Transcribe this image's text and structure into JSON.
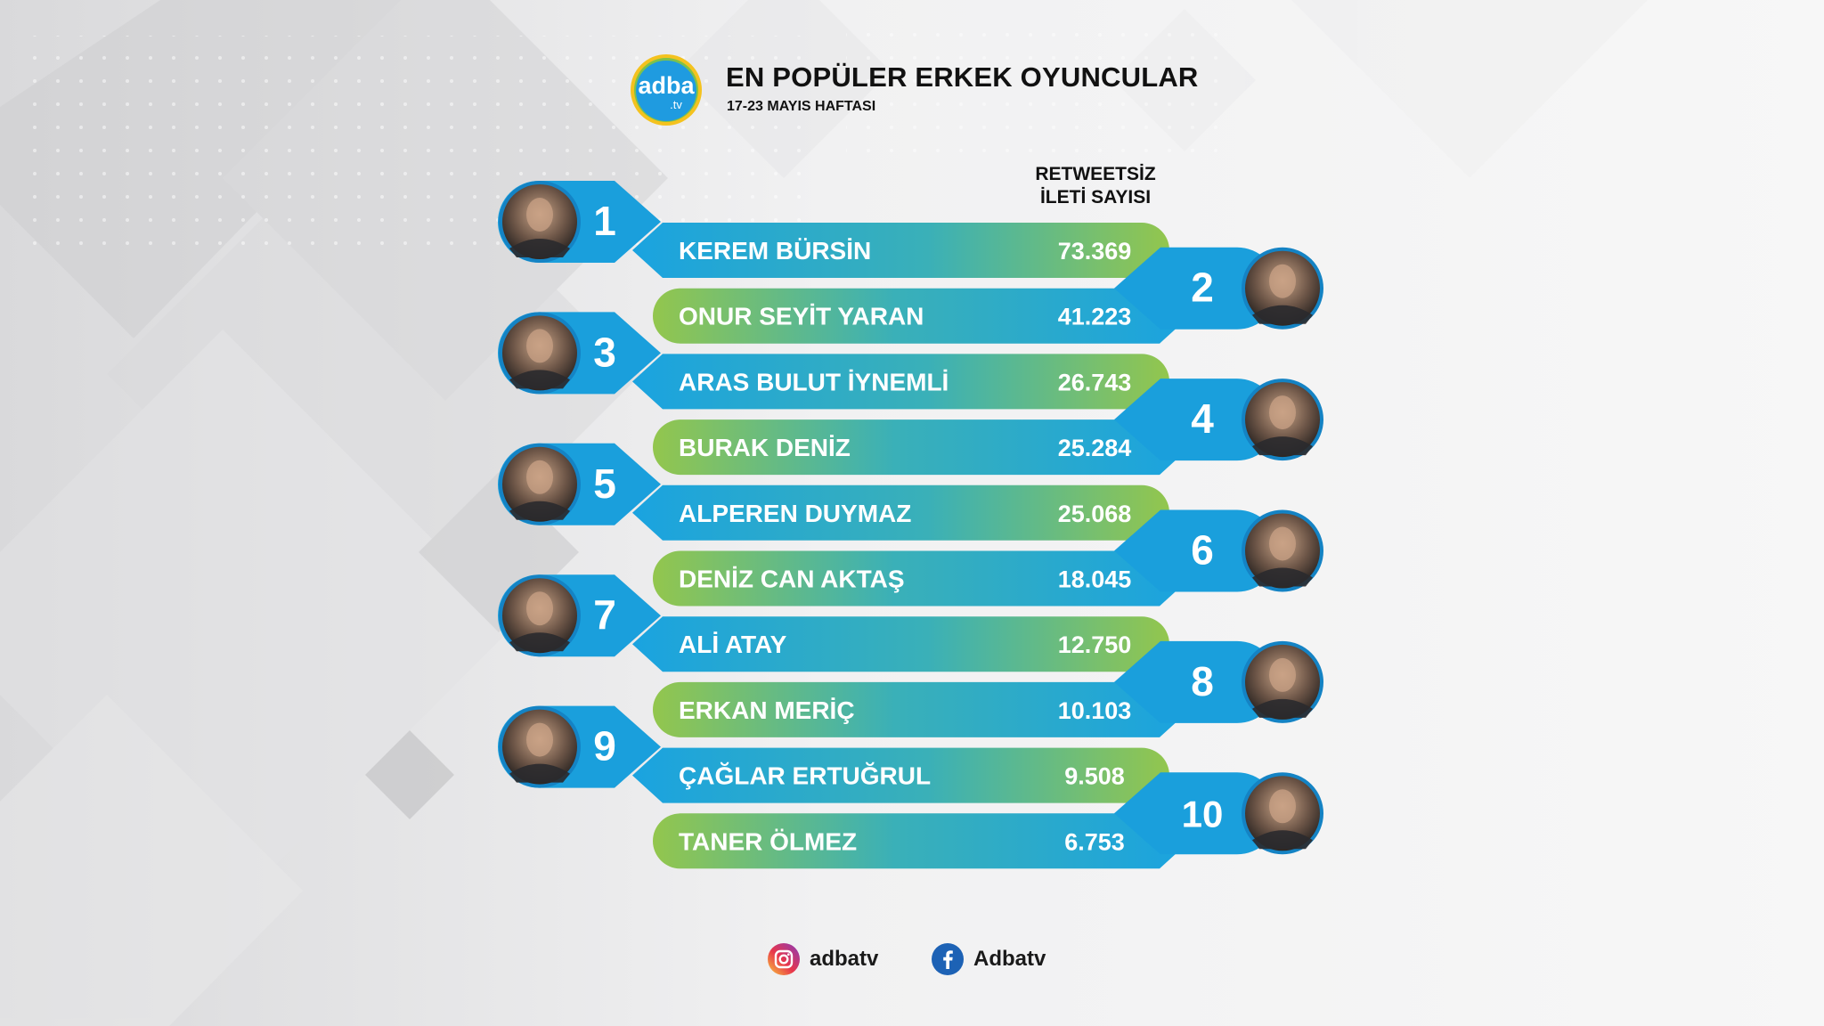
{
  "header": {
    "logo_text": "adba",
    "logo_sub": ".tv",
    "title": "EN POPÜLER ERKEK OYUNCULAR",
    "subtitle": "17-23 MAYIS HAFTASI",
    "column_heading_line1": "RETWEETSİZ",
    "column_heading_line2": "İLETİ SAYISI"
  },
  "ranking": [
    {
      "rank": "1",
      "name": "KEREM BÜRSİN",
      "value": "73.369",
      "side": "left"
    },
    {
      "rank": "2",
      "name": "ONUR SEYİT YARAN",
      "value": "41.223",
      "side": "right"
    },
    {
      "rank": "3",
      "name": "ARAS BULUT İYNEMLİ",
      "value": "26.743",
      "side": "left"
    },
    {
      "rank": "4",
      "name": "BURAK DENİZ",
      "value": "25.284",
      "side": "right"
    },
    {
      "rank": "5",
      "name": "ALPEREN DUYMAZ",
      "value": "25.068",
      "side": "left"
    },
    {
      "rank": "6",
      "name": "DENİZ CAN AKTAŞ",
      "value": "18.045",
      "side": "right"
    },
    {
      "rank": "7",
      "name": "ALİ ATAY",
      "value": "12.750",
      "side": "left"
    },
    {
      "rank": "8",
      "name": "ERKAN MERİÇ",
      "value": "10.103",
      "side": "right"
    },
    {
      "rank": "9",
      "name": "ÇAĞLAR ERTUĞRUL",
      "value": "9.508",
      "side": "left"
    },
    {
      "rank": "10",
      "name": "TANER ÖLMEZ",
      "value": "6.753",
      "side": "right"
    }
  ],
  "footer": {
    "instagram_handle": "adbatv",
    "facebook_handle": "Adbatv"
  },
  "colors": {
    "blue": "#1a9fdc",
    "green": "#8cc551",
    "photo_ring": "#1483c4"
  }
}
